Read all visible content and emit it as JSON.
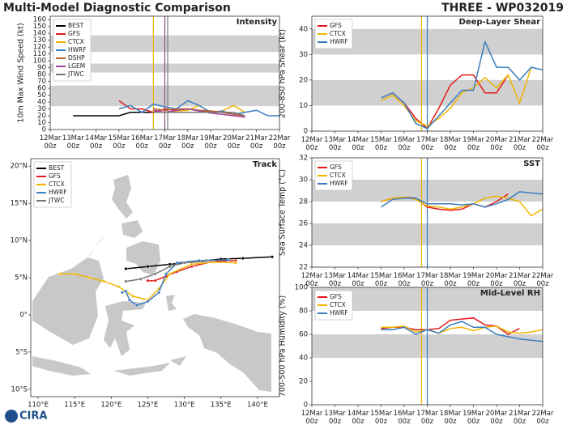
{
  "header": {
    "title": "Multi-Model Diagnostic Comparison",
    "storm": "THREE - WP032019"
  },
  "logo": "CIRA",
  "chart_data": [
    {
      "type": "line",
      "title": "Intensity",
      "ylabel": "10m Max Wind Speed (kt)",
      "x": [
        "13Mar 00z",
        "13Mar 12z",
        "14Mar 00z",
        "14Mar 12z",
        "15Mar 00z",
        "15Mar 12z",
        "16Mar 00z",
        "16Mar 12z",
        "17Mar 00z",
        "17Mar 12z",
        "18Mar 00z",
        "18Mar 12z",
        "19Mar 00z",
        "19Mar 12z",
        "20Mar 00z",
        "20Mar 12z",
        "21Mar 00z",
        "21Mar 12z",
        "22Mar 00z"
      ],
      "xlim": [
        "12Mar 00z",
        "22Mar 00z"
      ],
      "xticks": [
        "12Mar 00z",
        "13Mar 00z",
        "14Mar 00z",
        "15Mar 00z",
        "16Mar 00z",
        "17Mar 00z",
        "18Mar 00z",
        "19Mar 00z",
        "20Mar 00z",
        "21Mar 00z",
        "22Mar 00z"
      ],
      "ylim": [
        0,
        165
      ],
      "yticks": [
        0,
        10,
        20,
        30,
        40,
        50,
        60,
        70,
        80,
        90,
        100,
        110,
        120,
        130,
        140,
        150,
        160
      ],
      "bands": [
        [
          34,
          64
        ],
        [
          83,
          96
        ],
        [
          113,
          137
        ]
      ],
      "vlines": [
        {
          "x": "16Mar 12z",
          "color": "#f0b400"
        },
        {
          "x": "17Mar 00z",
          "color": "#8a4f7d"
        },
        {
          "x": "17Mar 03z",
          "color": "#777777"
        }
      ],
      "legend": "upper left",
      "series": [
        {
          "name": "BEST",
          "color": "#000000",
          "values": [
            20,
            20,
            20,
            20,
            20,
            25,
            25,
            25,
            null,
            null,
            null,
            null,
            null,
            null,
            null,
            null,
            null,
            null,
            null
          ]
        },
        {
          "name": "GFS",
          "color": "#e31a1c",
          "values": [
            null,
            null,
            null,
            null,
            42,
            30,
            30,
            25,
            30,
            28,
            30,
            27,
            27,
            25,
            22,
            20,
            null,
            null,
            null
          ]
        },
        {
          "name": "CTCX",
          "color": "#f0b400",
          "values": [
            null,
            null,
            null,
            null,
            null,
            null,
            null,
            25,
            25,
            27,
            28,
            35,
            25,
            27,
            35,
            25,
            null,
            null,
            null
          ]
        },
        {
          "name": "HWRF",
          "color": "#3a7dc0",
          "values": [
            null,
            null,
            null,
            null,
            30,
            35,
            25,
            37,
            33,
            30,
            42,
            35,
            25,
            27,
            22,
            25,
            28,
            20,
            20
          ]
        },
        {
          "name": "DSHP",
          "color": "#b0602a",
          "values": [
            null,
            null,
            null,
            null,
            null,
            null,
            null,
            30,
            28,
            30,
            30,
            28,
            27,
            25,
            22,
            20,
            null,
            null,
            null
          ]
        },
        {
          "name": "LGEM",
          "color": "#a5449a",
          "values": [
            null,
            null,
            null,
            null,
            null,
            null,
            null,
            28,
            25,
            28,
            30,
            27,
            24,
            22,
            20,
            18,
            null,
            null,
            null
          ]
        },
        {
          "name": "JTWC",
          "color": "#777777",
          "values": [
            null,
            null,
            null,
            null,
            null,
            null,
            null,
            25,
            25,
            25,
            25,
            25,
            25,
            25,
            25,
            20,
            null,
            null,
            null
          ]
        }
      ]
    },
    {
      "type": "map",
      "title": "Track",
      "xlim": [
        109,
        143
      ],
      "ylim": [
        -11,
        21
      ],
      "xticks": [
        {
          "value": 110,
          "label": "110°E"
        },
        {
          "value": 115,
          "label": "115°E"
        },
        {
          "value": 120,
          "label": "120°E"
        },
        {
          "value": 125,
          "label": "125°E"
        },
        {
          "value": 130,
          "label": "130°E"
        },
        {
          "value": 135,
          "label": "135°E"
        },
        {
          "value": 140,
          "label": "140°E"
        }
      ],
      "yticks": [
        {
          "value": 20,
          "label": "20°N"
        },
        {
          "value": 15,
          "label": "15°N"
        },
        {
          "value": 10,
          "label": "10°N"
        },
        {
          "value": 5,
          "label": "5°N"
        },
        {
          "value": 0,
          "label": "0°"
        },
        {
          "value": -5,
          "label": "5°S"
        },
        {
          "value": -10,
          "label": "10°S"
        }
      ],
      "legend": "upper left",
      "series": [
        {
          "name": "BEST",
          "color": "#000000",
          "x": [
            122,
            125,
            128,
            131,
            133,
            135,
            138,
            142
          ],
          "y": [
            6.2,
            6.5,
            6.8,
            7.1,
            7.3,
            7.5,
            7.6,
            7.8
          ]
        },
        {
          "name": "GFS",
          "color": "#e31a1c",
          "x": [
            137,
            134,
            131,
            129,
            127.5,
            126,
            125
          ],
          "y": [
            7.3,
            7.2,
            6.5,
            5.8,
            5.2,
            4.6,
            4.6
          ]
        },
        {
          "name": "CTCX",
          "color": "#f0b400",
          "x": [
            137,
            134,
            131,
            128,
            126.5,
            125,
            123,
            121,
            119,
            117,
            115,
            113
          ],
          "y": [
            7.0,
            7.1,
            6.8,
            5.5,
            3.5,
            2.0,
            2.5,
            3.8,
            4.5,
            5.0,
            5.5,
            5.5
          ]
        },
        {
          "name": "HWRF",
          "color": "#3a7dc0",
          "x": [
            136,
            132,
            129,
            127.5,
            126.5,
            125,
            123.5,
            122.5,
            122,
            121.5
          ],
          "y": [
            7.4,
            7.3,
            7.0,
            5.5,
            3.0,
            1.8,
            1.3,
            2.0,
            3.2,
            3.0
          ]
        },
        {
          "name": "JTWC",
          "color": "#777777",
          "x": [
            133,
            130,
            128,
            126,
            124,
            122
          ],
          "y": [
            7.2,
            7.0,
            6.5,
            5.5,
            4.8,
            4.5
          ]
        }
      ]
    },
    {
      "type": "line",
      "title": "Deep-Layer Shear",
      "ylabel": "200-850 hPa Shear (kt)",
      "x": [
        "15Mar 00z",
        "15Mar 12z",
        "16Mar 00z",
        "16Mar 12z",
        "17Mar 00z",
        "17Mar 12z",
        "18Mar 00z",
        "18Mar 12z",
        "19Mar 00z",
        "19Mar 12z",
        "20Mar 00z",
        "20Mar 12z",
        "21Mar 00z",
        "21Mar 12z",
        "22Mar 00z"
      ],
      "xlim": [
        "12Mar 00z",
        "22Mar 00z"
      ],
      "xticks": [
        "12Mar 00z",
        "13Mar 00z",
        "14Mar 00z",
        "15Mar 00z",
        "16Mar 00z",
        "17Mar 00z",
        "18Mar 00z",
        "19Mar 00z",
        "20Mar 00z",
        "21Mar 00z",
        "22Mar 00z"
      ],
      "ylim": [
        0,
        45
      ],
      "yticks": [
        0,
        10,
        20,
        30,
        40
      ],
      "bands": [
        [
          10,
          20
        ],
        [
          30,
          40
        ]
      ],
      "vlines": [
        {
          "x": "16Mar 18z",
          "color": "#f0b400"
        },
        {
          "x": "17Mar 00z",
          "color": "#3a7dc0"
        }
      ],
      "legend": "upper left",
      "series": [
        {
          "name": "GFS",
          "color": "#e31a1c",
          "values": [
            13,
            15,
            11,
            5,
            1,
            9,
            18,
            22,
            22,
            15,
            15,
            22,
            null,
            null,
            null
          ]
        },
        {
          "name": "CTCX",
          "color": "#f0b400",
          "values": [
            12,
            14,
            10,
            4,
            2,
            5,
            9,
            15,
            17,
            21,
            17,
            22,
            11,
            25,
            null
          ]
        },
        {
          "name": "HWRF",
          "color": "#3a7dc0",
          "values": [
            13,
            15,
            11,
            3,
            1,
            6,
            11,
            16,
            16,
            35,
            25,
            25,
            20,
            25,
            24
          ]
        }
      ]
    },
    {
      "type": "line",
      "title": "SST",
      "ylabel": "Sea Surface Temp (°C)",
      "x": [
        "15Mar 00z",
        "15Mar 12z",
        "16Mar 00z",
        "16Mar 12z",
        "17Mar 00z",
        "17Mar 12z",
        "18Mar 00z",
        "18Mar 12z",
        "19Mar 00z",
        "19Mar 12z",
        "20Mar 00z",
        "20Mar 12z",
        "21Mar 00z",
        "21Mar 12z",
        "22Mar 00z"
      ],
      "xlim": [
        "12Mar 00z",
        "22Mar 00z"
      ],
      "xticks": [
        "12Mar 00z",
        "13Mar 00z",
        "14Mar 00z",
        "15Mar 00z",
        "16Mar 00z",
        "17Mar 00z",
        "18Mar 00z",
        "19Mar 00z",
        "20Mar 00z",
        "21Mar 00z",
        "22Mar 00z"
      ],
      "ylim": [
        22,
        32
      ],
      "yticks": [
        22,
        24,
        26,
        28,
        30,
        32
      ],
      "bands": [
        [
          24,
          26
        ],
        [
          28,
          30
        ]
      ],
      "vlines": [
        {
          "x": "16Mar 18z",
          "color": "#f0b400"
        },
        {
          "x": "17Mar 00z",
          "color": "#3a7dc0"
        }
      ],
      "legend": "upper left",
      "series": [
        {
          "name": "GFS",
          "color": "#e31a1c",
          "values": [
            28.0,
            28.3,
            28.4,
            28.3,
            27.5,
            27.3,
            27.2,
            27.3,
            27.8,
            27.5,
            28.0,
            28.7,
            null,
            null,
            null
          ]
        },
        {
          "name": "CTCX",
          "color": "#f0b400",
          "values": [
            28.0,
            28.3,
            28.4,
            28.2,
            27.6,
            27.5,
            27.3,
            27.5,
            27.8,
            28.3,
            28.5,
            28.3,
            28.0,
            26.7,
            27.3
          ]
        },
        {
          "name": "HWRF",
          "color": "#3a7dc0",
          "values": [
            27.5,
            28.2,
            28.3,
            28.3,
            27.8,
            27.8,
            27.8,
            27.7,
            27.8,
            27.5,
            27.8,
            28.2,
            28.9,
            28.8,
            28.7
          ]
        }
      ]
    },
    {
      "type": "line",
      "title": "Mid-Level RH",
      "ylabel": "700-500 hPa Humidity (%)",
      "x": [
        "15Mar 00z",
        "15Mar 12z",
        "16Mar 00z",
        "16Mar 12z",
        "17Mar 00z",
        "17Mar 12z",
        "18Mar 00z",
        "18Mar 12z",
        "19Mar 00z",
        "19Mar 12z",
        "20Mar 00z",
        "20Mar 12z",
        "21Mar 00z",
        "21Mar 12z",
        "22Mar 00z"
      ],
      "xlim": [
        "12Mar 00z",
        "22Mar 00z"
      ],
      "xticks": [
        "12Mar 00z",
        "13Mar 00z",
        "14Mar 00z",
        "15Mar 00z",
        "16Mar 00z",
        "17Mar 00z",
        "18Mar 00z",
        "19Mar 00z",
        "20Mar 00z",
        "21Mar 00z",
        "22Mar 00z"
      ],
      "ylim": [
        0,
        100
      ],
      "yticks": [
        0,
        20,
        40,
        60,
        80,
        100
      ],
      "bands": [
        [
          40,
          60
        ],
        [
          80,
          100
        ]
      ],
      "vlines": [
        {
          "x": "16Mar 18z",
          "color": "#f0b400"
        },
        {
          "x": "17Mar 00z",
          "color": "#3a7dc0"
        }
      ],
      "legend": "upper left",
      "series": [
        {
          "name": "GFS",
          "color": "#e31a1c",
          "values": [
            65,
            66,
            66,
            64,
            64,
            65,
            72,
            73,
            74,
            68,
            67,
            60,
            65,
            null,
            null
          ]
        },
        {
          "name": "CTCX",
          "color": "#f0b400",
          "values": [
            66,
            66,
            67,
            62,
            64,
            61,
            65,
            66,
            63,
            66,
            67,
            62,
            61,
            62,
            64
          ]
        },
        {
          "name": "HWRF",
          "color": "#3a7dc0",
          "values": [
            64,
            64,
            66,
            60,
            64,
            61,
            68,
            71,
            66,
            66,
            60,
            58,
            56,
            55,
            54
          ]
        }
      ]
    }
  ]
}
